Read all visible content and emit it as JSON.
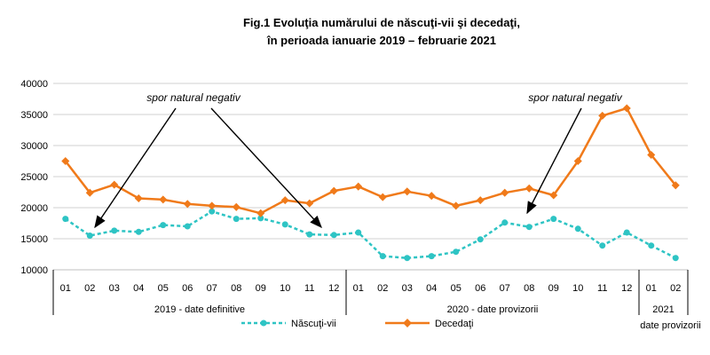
{
  "chart_data": {
    "type": "line",
    "title_line1": "Fig.1 Evoluţia numărului de născuţi-vii şi decedaţi,",
    "title_line2": "în perioada ianuarie 2019 –  februarie 2021",
    "ylim": [
      10000,
      40000
    ],
    "y_ticks": [
      "10000",
      "15000",
      "20000",
      "25000",
      "30000",
      "35000",
      "40000"
    ],
    "categories": [
      "01",
      "02",
      "03",
      "04",
      "05",
      "06",
      "07",
      "08",
      "09",
      "10",
      "11",
      "12",
      "01",
      "02",
      "03",
      "04",
      "05",
      "06",
      "07",
      "08",
      "09",
      "10",
      "11",
      "12",
      "01",
      "02"
    ],
    "groups": [
      {
        "label": "2019 - date definitive",
        "months": 12
      },
      {
        "label": "2020 - date provizorii",
        "months": 12
      },
      {
        "label": "2021",
        "sublabel": "date provizorii",
        "months": 2
      }
    ],
    "series": [
      {
        "name": "Născuţi-vii",
        "color": "#2ec4c4",
        "style": "dashed",
        "marker": "circle",
        "values": [
          18200,
          15500,
          16300,
          16100,
          17200,
          17000,
          19400,
          18200,
          18300,
          17300,
          15700,
          15600,
          16000,
          12200,
          11900,
          12200,
          12900,
          14900,
          17600,
          16900,
          18200,
          16600,
          13900,
          16000,
          13900,
          11900
        ]
      },
      {
        "name": "Decedaţi",
        "color": "#f07a1a",
        "style": "solid",
        "marker": "diamond",
        "values": [
          27500,
          22400,
          23700,
          21500,
          21300,
          20600,
          20300,
          20100,
          19100,
          21200,
          20700,
          22700,
          23400,
          21700,
          22600,
          21900,
          20300,
          21200,
          22400,
          23100,
          22000,
          27500,
          34800,
          36000,
          28500,
          23600
        ]
      }
    ],
    "annotations": [
      {
        "text": "spor natural negativ"
      },
      {
        "text": "spor natural negativ"
      }
    ],
    "grid": true,
    "legend_position": "bottom"
  }
}
